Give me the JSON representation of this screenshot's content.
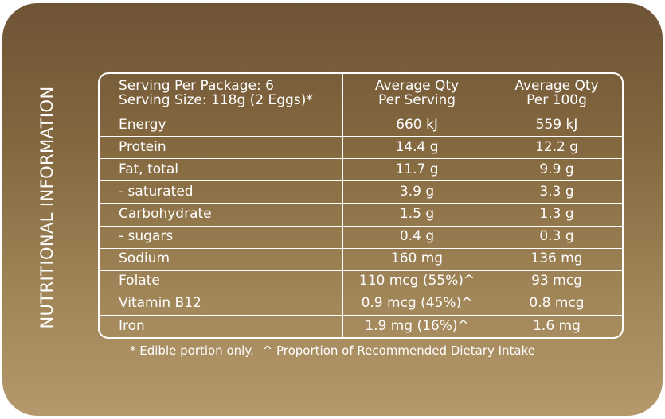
{
  "side_title": "NUTRITIONAL INFORMATION",
  "header": {
    "serving_per_package": "Serving Per Package: 6",
    "serving_size": "Serving Size: 118g (2 Eggs)*",
    "col2_line1": "Average Qty",
    "col2_line2": "Per Serving",
    "col3_line1": "Average Qty",
    "col3_line2": "Per 100g"
  },
  "rows": [
    {
      "nutrient": "Energy",
      "per_serving": "660 kJ",
      "per_100g": "559 kJ"
    },
    {
      "nutrient": "Protein",
      "per_serving": "14.4 g",
      "per_100g": "12.2 g"
    },
    {
      "nutrient": "Fat, total",
      "per_serving": "11.7 g",
      "per_100g": "9.9 g"
    },
    {
      "nutrient": "- saturated",
      "per_serving": "3.9 g",
      "per_100g": "3.3 g"
    },
    {
      "nutrient": "Carbohydrate",
      "per_serving": "1.5 g",
      "per_100g": "1.3 g"
    },
    {
      "nutrient": "- sugars",
      "per_serving": "0.4 g",
      "per_100g": "0.3 g"
    },
    {
      "nutrient": "Sodium",
      "per_serving": "160 mg",
      "per_100g": "136 mg"
    },
    {
      "nutrient": "Folate",
      "per_serving": "110 mcg (55%)^",
      "per_100g": "93 mcg"
    },
    {
      "nutrient": "Vitamin B12",
      "per_serving": "0.9 mcg (45%)^",
      "per_100g": "0.8 mcg"
    },
    {
      "nutrient": "Iron",
      "per_serving": "1.9 mg (16%)^",
      "per_100g": "1.6 mg"
    }
  ],
  "footnote": {
    "edible": "* Edible portion only.",
    "rdi": "^ Proportion of Recommended Dietary Intake"
  }
}
